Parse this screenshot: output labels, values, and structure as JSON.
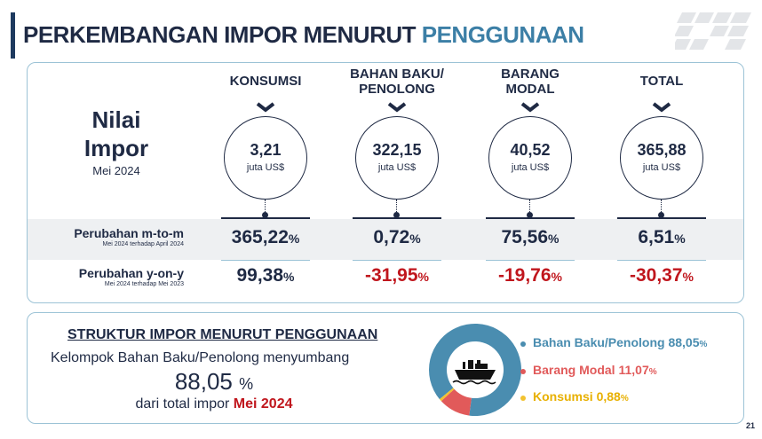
{
  "header": {
    "title_part1": "PERKEMBANGAN IMPOR MENURUT",
    "title_part2": "PENGGUNAAN"
  },
  "nilai": {
    "label_line1": "Nilai",
    "label_line2": "Impor",
    "period": "Mei 2024"
  },
  "columns": [
    {
      "heading_line1": "KONSUMSI",
      "heading_line2": "",
      "value": "3,21",
      "unit": "juta US$",
      "mtm": "365,22",
      "yoy": "99,38",
      "mtm_neg": false,
      "yoy_neg": false
    },
    {
      "heading_line1": "BAHAN BAKU/",
      "heading_line2": "PENOLONG",
      "value": "322,15",
      "unit": "juta US$",
      "mtm": "0,72",
      "yoy": "-31,95",
      "mtm_neg": false,
      "yoy_neg": true
    },
    {
      "heading_line1": "BARANG",
      "heading_line2": "MODAL",
      "value": "40,52",
      "unit": "juta US$",
      "mtm": "75,56",
      "yoy": "-19,76",
      "mtm_neg": false,
      "yoy_neg": true
    },
    {
      "heading_line1": "TOTAL",
      "heading_line2": "",
      "value": "365,88",
      "unit": "juta US$",
      "mtm": "6,51",
      "yoy": "-30,37",
      "mtm_neg": false,
      "yoy_neg": true
    }
  ],
  "percent_sign": "%",
  "rows": {
    "mtm_label": "Perubahan m-to-m",
    "mtm_sub": "Mei 2024 terhadap April 2024",
    "yoy_label": "Perubahan y-on-y",
    "yoy_sub": "Mei 2024 terhadap Mei 2023"
  },
  "structure": {
    "title": "STRUKTUR IMPOR MENURUT PENGGUNAAN",
    "line1": "Kelompok Bahan Baku/Penolong menyumbang",
    "big_value": "88,05",
    "big_unit": "%",
    "line3_prefix": "dari total impor",
    "line3_highlight": "Mei 2024"
  },
  "chart_data": {
    "type": "pie",
    "donut": true,
    "slices": [
      {
        "label": "Bahan Baku/Penolong",
        "value": 88.05,
        "value_text": "88,05",
        "color": "#4a8db0"
      },
      {
        "label": "Barang Modal",
        "value": 11.07,
        "value_text": "11,07",
        "color": "#e15a5a"
      },
      {
        "label": "Konsumsi",
        "value": 0.88,
        "value_text": "0,88",
        "color": "#f2c230"
      }
    ],
    "center_icon": "cargo-ship-icon"
  },
  "page_number": "21"
}
